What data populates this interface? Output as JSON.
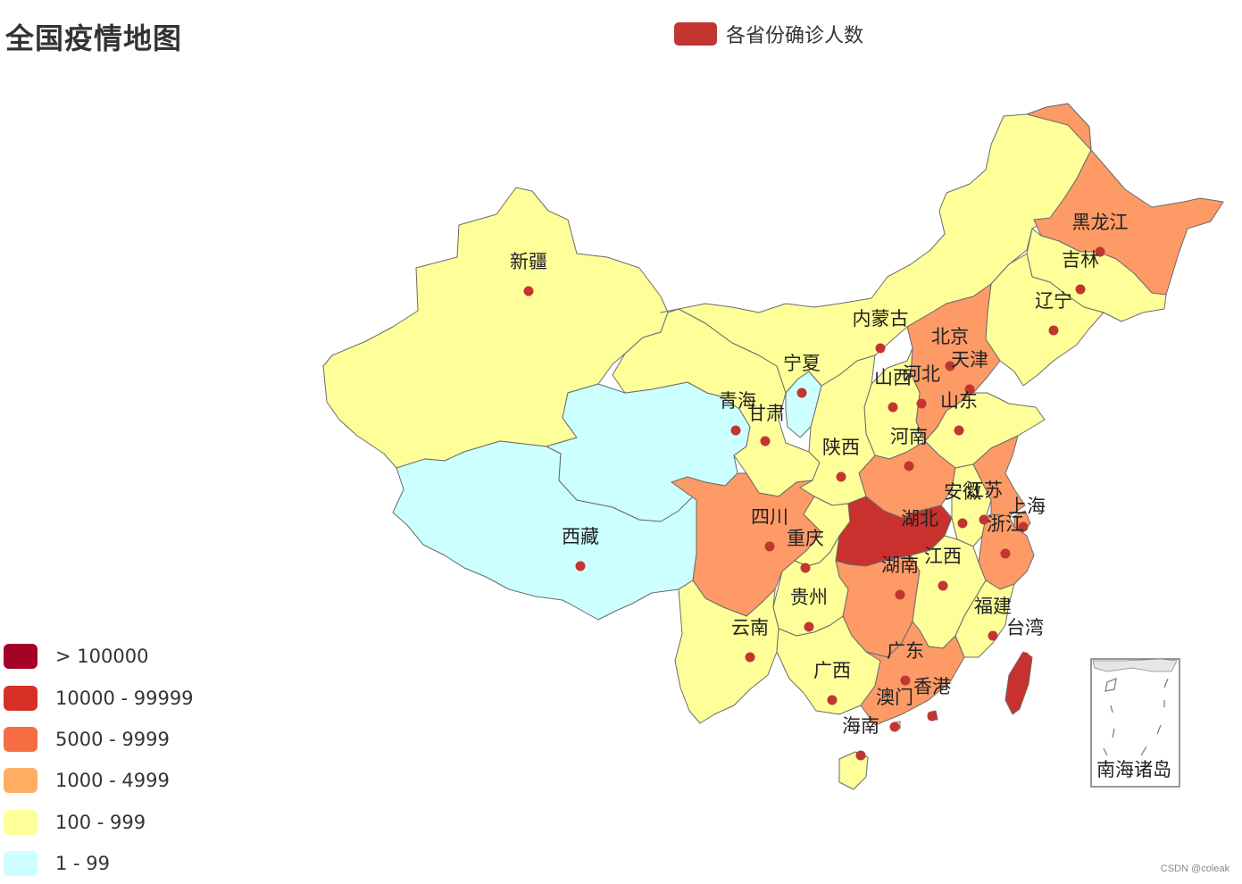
{
  "title": "全国疫情地图",
  "legend": {
    "label": "各省份确诊人数",
    "color": "#c23531"
  },
  "visual_map": [
    {
      "label": "> 100000",
      "color": "#a50026"
    },
    {
      "label": "10000 - 99999",
      "color": "#d73027"
    },
    {
      "label": "5000 - 9999",
      "color": "#f46d43"
    },
    {
      "label": "1000 - 4999",
      "color": "#fdae61"
    },
    {
      "label": "100 - 999",
      "color": "#ffff99"
    },
    {
      "label": "1 - 99",
      "color": "#ccffff"
    }
  ],
  "colors": {
    "c10000": "#c8312e",
    "c1000": "#fd9a66",
    "c100": "#ffff99",
    "c1": "#ccffff",
    "dot": "#c23531"
  },
  "provinces": [
    {
      "name": "新疆",
      "range": "100 - 999"
    },
    {
      "name": "西藏",
      "range": "1 - 99"
    },
    {
      "name": "青海",
      "range": "1 - 99"
    },
    {
      "name": "甘肃",
      "range": "100 - 999"
    },
    {
      "name": "宁夏",
      "range": "1 - 99"
    },
    {
      "name": "内蒙古",
      "range": "100 - 999"
    },
    {
      "name": "黑龙江",
      "range": "1000 - 4999"
    },
    {
      "name": "吉林",
      "range": "100 - 999"
    },
    {
      "name": "辽宁",
      "range": "100 - 999"
    },
    {
      "name": "北京",
      "range": "1000 - 4999"
    },
    {
      "name": "天津",
      "range": "100 - 999"
    },
    {
      "name": "河北",
      "range": "1000 - 4999"
    },
    {
      "name": "山西",
      "range": "100 - 999"
    },
    {
      "name": "山东",
      "range": "100 - 999"
    },
    {
      "name": "河南",
      "range": "1000 - 4999"
    },
    {
      "name": "陕西",
      "range": "100 - 999"
    },
    {
      "name": "四川",
      "range": "1000 - 4999"
    },
    {
      "name": "重庆",
      "range": "100 - 999"
    },
    {
      "name": "湖北",
      "range": "10000 - 99999"
    },
    {
      "name": "安徽",
      "range": "100 - 999"
    },
    {
      "name": "江苏",
      "range": "1000 - 4999"
    },
    {
      "name": "上海",
      "range": "1000 - 4999"
    },
    {
      "name": "浙江",
      "range": "1000 - 4999"
    },
    {
      "name": "湖南",
      "range": "1000 - 4999"
    },
    {
      "name": "江西",
      "range": "100 - 999"
    },
    {
      "name": "贵州",
      "range": "100 - 999"
    },
    {
      "name": "云南",
      "range": "100 - 999"
    },
    {
      "name": "福建",
      "range": "100 - 999"
    },
    {
      "name": "台湾",
      "range": "10000 - 99999"
    },
    {
      "name": "广西",
      "range": "100 - 999"
    },
    {
      "name": "广东",
      "range": "1000 - 4999"
    },
    {
      "name": "香港",
      "range": "10000 - 99999"
    },
    {
      "name": "澳门",
      "range": "100 - 999"
    },
    {
      "name": "海南",
      "range": "100 - 999"
    }
  ],
  "inset_label": "南海诸岛",
  "watermark": "CSDN @coleak"
}
